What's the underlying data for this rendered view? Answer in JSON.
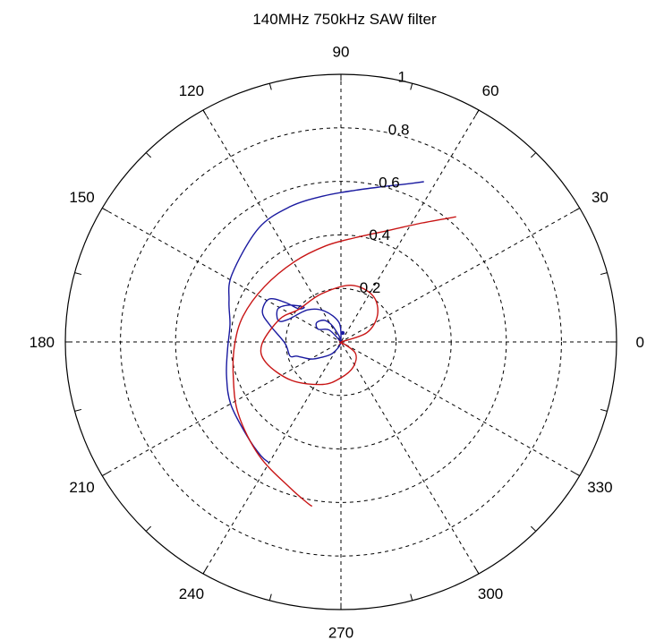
{
  "chart_data": {
    "type": "polar",
    "title": "140MHz 750kHz SAW filter",
    "rlim": [
      0,
      1
    ],
    "radial_ticks": [
      0.2,
      0.4,
      0.6,
      0.8,
      1
    ],
    "radial_tick_labels": [
      "0.2",
      "0.4",
      "0.6",
      "0.8",
      "1"
    ],
    "angular_ticks_deg": [
      0,
      30,
      60,
      90,
      120,
      150,
      180,
      210,
      240,
      270,
      300,
      330
    ],
    "angular_tick_labels": [
      "0",
      "30",
      "60",
      "90",
      "120",
      "150",
      "180",
      "210",
      "240",
      "270",
      "300",
      "330"
    ],
    "grid": true,
    "series": [
      {
        "color": "#1a1aa0",
        "points": [
          [
            0.67,
            63.3
          ],
          [
            0.636,
            68.1
          ],
          [
            0.604,
            74.3
          ],
          [
            0.57,
            84.4
          ],
          [
            0.549,
            96.6
          ],
          [
            0.538,
            110.0
          ],
          [
            0.519,
            125.3
          ],
          [
            0.469,
            147.4
          ],
          [
            0.434,
            159.4
          ],
          [
            0.408,
            170.8
          ],
          [
            0.413,
            184.4
          ],
          [
            0.435,
            197.4
          ],
          [
            0.463,
            210.4
          ],
          [
            0.49,
            226.1
          ],
          [
            0.515,
            235.7
          ],
          [
            0.521,
            239.8
          ]
        ]
      },
      {
        "color": "#c81414",
        "points": [
          [
            0.627,
            48.2
          ],
          [
            0.534,
            56.4
          ],
          [
            0.452,
            67.3
          ],
          [
            0.393,
            82.4
          ],
          [
            0.363,
            98.8
          ],
          [
            0.344,
            119.2
          ],
          [
            0.346,
            143.3
          ],
          [
            0.368,
            164.8
          ],
          [
            0.386,
            181.6
          ],
          [
            0.412,
            198.5
          ],
          [
            0.46,
            216.0
          ],
          [
            0.519,
            235.2
          ],
          [
            0.575,
            251.2
          ],
          [
            0.613,
            258.4
          ],
          [
            0.623,
            260.3
          ]
        ]
      },
      {
        "color": "#1a1aa0",
        "points": [
          [
            0.0,
            0.0
          ],
          [
            0.072,
            95.2
          ],
          [
            0.13,
            117.3
          ],
          [
            0.17,
            135.2
          ],
          [
            0.211,
            156.9
          ],
          [
            0.241,
            160.6
          ],
          [
            0.26,
            151.6
          ],
          [
            0.232,
            143.6
          ],
          [
            0.187,
            135.9
          ],
          [
            0.198,
            141.2
          ],
          [
            0.249,
            143.8
          ],
          [
            0.306,
            148.4
          ],
          [
            0.306,
            158.7
          ],
          [
            0.264,
            166.5
          ],
          [
            0.203,
            181.5
          ],
          [
            0.192,
            195.9
          ],
          [
            0.168,
            198.5
          ],
          [
            0.128,
            209.9
          ],
          [
            0.095,
            218.1
          ],
          [
            0.052,
            234.5
          ],
          [
            0.0,
            0.0
          ],
          [
            0.05,
            114.4
          ],
          [
            0.076,
            119.0
          ],
          [
            0.101,
            126.8
          ],
          [
            0.114,
            140.9
          ],
          [
            0.095,
            150.1
          ],
          [
            0.061,
            133.6
          ],
          [
            0.0,
            0.0
          ]
        ]
      },
      {
        "color": "#c81414",
        "points": [
          [
            0.0,
            0.0
          ],
          [
            0.1,
            20.2
          ],
          [
            0.167,
            37.4
          ],
          [
            0.208,
            56.2
          ],
          [
            0.215,
            80.2
          ],
          [
            0.193,
            111.8
          ],
          [
            0.196,
            141.6
          ],
          [
            0.238,
            159.1
          ],
          [
            0.287,
            181.8
          ],
          [
            0.283,
            195.7
          ],
          [
            0.23,
            218.6
          ],
          [
            0.172,
            247.4
          ],
          [
            0.135,
            269.2
          ],
          [
            0.104,
            295.1
          ],
          [
            0.067,
            321.4
          ],
          [
            0.0,
            0.0
          ]
        ]
      }
    ]
  }
}
